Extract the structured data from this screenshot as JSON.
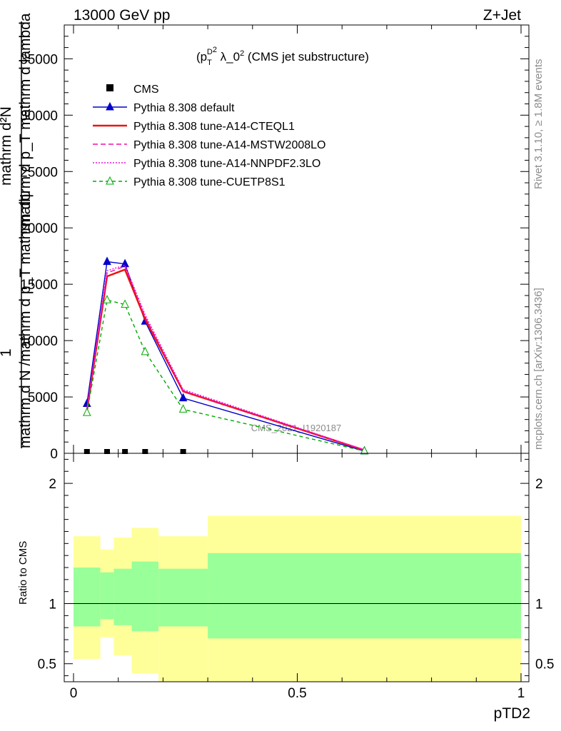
{
  "header": {
    "left": "13000 GeV pp",
    "right": "Z+Jet"
  },
  "side_text": {
    "rivet": "Rivet 3.1.10, ≥ 1.8M events",
    "mcplots": "mcplots.cern.ch [arXiv:1306.3436]"
  },
  "watermark": "CMS_2021_I1920187",
  "chart_data": [
    {
      "type": "line",
      "title_parts": {
        "base": "(p",
        "sub": "T",
        "sup_d": "D",
        "sup_2": "2",
        "rest": " λ_0",
        "sup_end": "2",
        "tail": " (CMS jet substructure)"
      },
      "ylabel_lines": [
        "1",
        "mathrm d N /mathrm d p_T mathrm dψ",
        "mathrm d²N",
        "mathrm d p_T mathrm d lambda"
      ],
      "ylabel_full": {
        "line1": "mathrm d²N",
        "line2": "mathrm d p_T mathrm d lambda",
        "line3": "1",
        "line4": "mathrm d N /mathrm d p_T mathrm dψ"
      },
      "xlim": [
        0,
        1
      ],
      "ylim": [
        0,
        38000
      ],
      "yticks": [
        0,
        5000,
        10000,
        15000,
        20000,
        25000,
        30000,
        35000
      ],
      "ytick_labels": [
        "0",
        "5000",
        "10000",
        "15000",
        "20000",
        "25000",
        "30000",
        "35000"
      ],
      "x": [
        0.03,
        0.075,
        0.115,
        0.16,
        0.245,
        0.65
      ],
      "series": [
        {
          "name": "CMS",
          "color": "#000000",
          "style": "points",
          "values": [
            0,
            0,
            0,
            0,
            0,
            null
          ]
        },
        {
          "name": "Pythia 8.308 default",
          "color": "#0000cc",
          "style": "solid-triangle",
          "values": [
            4400,
            17000,
            16800,
            11700,
            4900,
            200
          ]
        },
        {
          "name": "Pythia 8.308 tune-A14-CTEQL1",
          "color": "#ee1111",
          "style": "solid-thick",
          "values": [
            3800,
            15700,
            16300,
            11900,
            5500,
            280
          ]
        },
        {
          "name": "Pythia 8.308 tune-A14-MSTW2008LO",
          "color": "#ee11aa",
          "style": "dashed",
          "values": [
            3900,
            16000,
            16600,
            12100,
            5550,
            290
          ]
        },
        {
          "name": "Pythia 8.308 tune-A14-NNPDF2.3LO",
          "color": "#ee11dd",
          "style": "dotted",
          "values": [
            3900,
            16200,
            16700,
            12300,
            5650,
            310
          ]
        },
        {
          "name": "Pythia 8.308 tune-CUETP8S1",
          "color": "#00aa00",
          "style": "dashed-open-triangle",
          "values": [
            3600,
            13600,
            13200,
            9000,
            3900,
            200
          ]
        }
      ]
    },
    {
      "type": "area",
      "ylabel": "Ratio to CMS",
      "xlabel": "pTD2",
      "xlim": [
        0,
        1
      ],
      "ylim": [
        0.35,
        2.25
      ],
      "xticks": [
        0,
        0.5,
        1
      ],
      "xtick_labels": [
        "0",
        "0.5",
        "1"
      ],
      "yticks": [
        0.5,
        1,
        2
      ],
      "ytick_labels": [
        "0.5",
        "1",
        "2"
      ],
      "bins": [
        {
          "x0": 0.0,
          "x1": 0.06,
          "yellow": [
            0.54,
            1.56
          ],
          "green": [
            0.81,
            1.3
          ]
        },
        {
          "x0": 0.06,
          "x1": 0.09,
          "yellow": [
            0.72,
            1.45
          ],
          "green": [
            0.87,
            1.26
          ]
        },
        {
          "x0": 0.09,
          "x1": 0.13,
          "yellow": [
            0.57,
            1.55
          ],
          "green": [
            0.82,
            1.29
          ]
        },
        {
          "x0": 0.13,
          "x1": 0.19,
          "yellow": [
            0.42,
            1.63
          ],
          "green": [
            0.77,
            1.35
          ]
        },
        {
          "x0": 0.19,
          "x1": 0.3,
          "yellow": [
            0.35,
            1.56
          ],
          "green": [
            0.81,
            1.29
          ]
        },
        {
          "x0": 0.3,
          "x1": 1.0,
          "yellow": [
            0.35,
            1.73
          ],
          "green": [
            0.71,
            1.42
          ]
        }
      ],
      "colors": {
        "yellow": "#ffff99",
        "green": "#99ff99"
      }
    }
  ]
}
